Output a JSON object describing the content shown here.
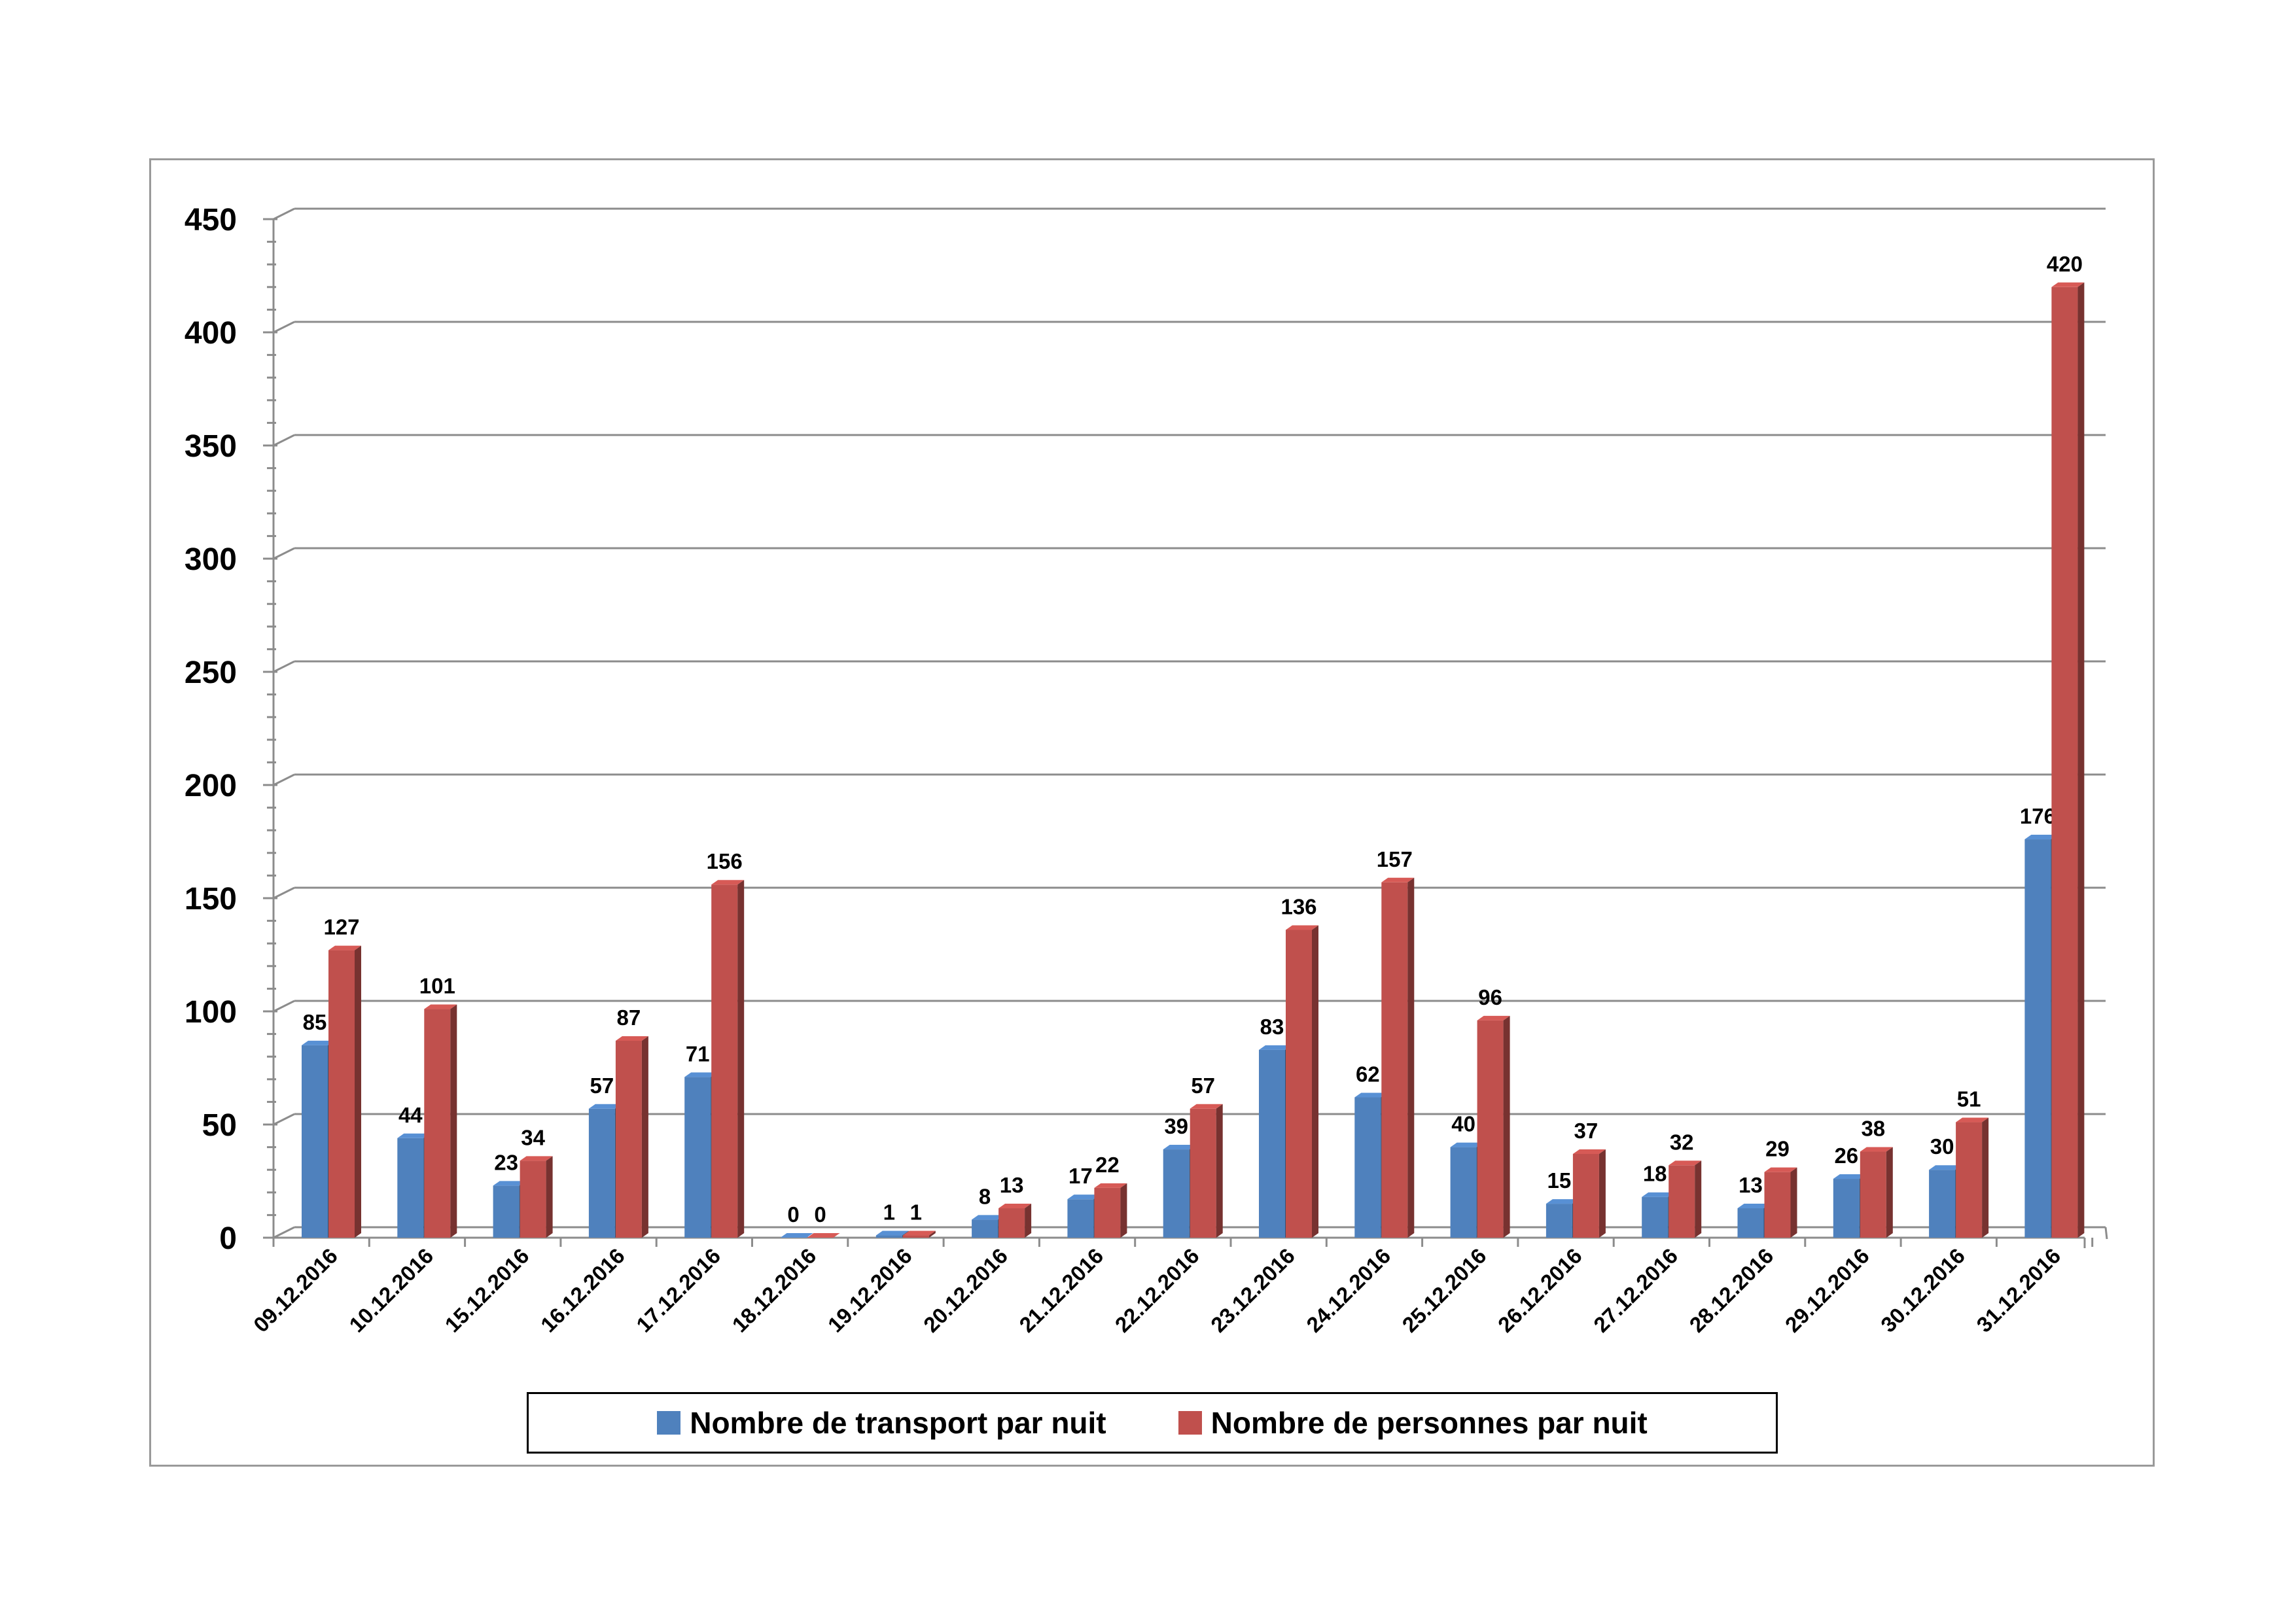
{
  "chart_data": {
    "type": "bar",
    "title": "",
    "xlabel": "",
    "ylabel": "",
    "ylim": [
      0,
      450
    ],
    "yticks": [
      0,
      50,
      100,
      150,
      200,
      250,
      300,
      350,
      400,
      450
    ],
    "grid": true,
    "legend_position": "bottom",
    "categories": [
      "09.12.2016",
      "10.12.2016",
      "15.12.2016",
      "16.12.2016",
      "17.12.2016",
      "18.12.2016",
      "19.12.2016",
      "20.12.2016",
      "21.12.2016",
      "22.12.2016",
      "23.12.2016",
      "24.12.2016",
      "25.12.2016",
      "26.12.2016",
      "27.12.2016",
      "28.12.2016",
      "29.12.2016",
      "30.12.2016",
      "31.12.2016"
    ],
    "series": [
      {
        "name": "Nombre de transport par nuit",
        "color": "#4f81bd",
        "values": [
          85,
          44,
          23,
          57,
          71,
          0,
          1,
          8,
          17,
          39,
          83,
          62,
          40,
          15,
          18,
          13,
          26,
          30,
          176
        ]
      },
      {
        "name": "Nombre de personnes par nuit",
        "color": "#c0504d",
        "values": [
          127,
          101,
          34,
          87,
          156,
          0,
          1,
          13,
          22,
          57,
          136,
          157,
          96,
          37,
          32,
          29,
          38,
          51,
          420
        ]
      }
    ]
  }
}
